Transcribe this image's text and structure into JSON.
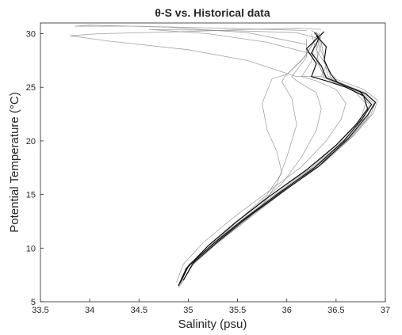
{
  "chart_data": {
    "type": "line",
    "title": "θ-S vs. Historical data",
    "xlabel": "Salinity (psu)",
    "ylabel": "Potential Temperature (°C)",
    "xlim": [
      33.5,
      37
    ],
    "ylim": [
      5,
      31
    ],
    "x_ticks": [
      "33.5",
      "34",
      "34.5",
      "35",
      "35.5",
      "36",
      "36.5",
      "37"
    ],
    "y_ticks": [
      "5",
      "10",
      "15",
      "20",
      "25",
      "30"
    ],
    "grid": false,
    "legend": "none",
    "colors": {
      "historical": "#8c8c8c",
      "current": "#111111",
      "axis": "#262626"
    },
    "series": [
      {
        "group": "historical",
        "points": [
          [
            34.9,
            6.3
          ],
          [
            34.98,
            8.0
          ],
          [
            35.2,
            10.2
          ],
          [
            35.5,
            12.5
          ],
          [
            35.85,
            15.0
          ],
          [
            36.25,
            17.5
          ],
          [
            36.55,
            20.0
          ],
          [
            36.75,
            22.0
          ],
          [
            36.8,
            23.5
          ],
          [
            36.7,
            24.5
          ],
          [
            36.55,
            25.3
          ],
          [
            36.4,
            25.8
          ],
          [
            36.3,
            27.5
          ],
          [
            36.35,
            29.0
          ],
          [
            36.3,
            30.2
          ]
        ]
      },
      {
        "group": "historical",
        "points": [
          [
            34.93,
            6.6
          ],
          [
            35.02,
            8.2
          ],
          [
            35.25,
            10.3
          ],
          [
            35.55,
            12.6
          ],
          [
            35.9,
            15.0
          ],
          [
            36.3,
            17.6
          ],
          [
            36.62,
            20.1
          ],
          [
            36.82,
            22.2
          ],
          [
            36.88,
            23.5
          ],
          [
            36.75,
            24.6
          ],
          [
            36.55,
            25.4
          ],
          [
            36.35,
            26.0
          ],
          [
            36.4,
            27.0
          ],
          [
            36.3,
            28.5
          ],
          [
            36.35,
            29.8
          ],
          [
            36.25,
            30.3
          ]
        ]
      },
      {
        "group": "historical",
        "points": [
          [
            34.88,
            6.8
          ],
          [
            34.95,
            8.5
          ],
          [
            35.15,
            10.5
          ],
          [
            35.45,
            12.8
          ],
          [
            35.8,
            15.2
          ],
          [
            36.15,
            17.6
          ],
          [
            36.4,
            20.0
          ],
          [
            36.55,
            22.0
          ],
          [
            36.6,
            23.5
          ],
          [
            36.5,
            24.8
          ],
          [
            36.3,
            25.6
          ],
          [
            36.15,
            26.0
          ],
          [
            36.25,
            27.4
          ],
          [
            36.28,
            29.0
          ],
          [
            36.25,
            30.0
          ]
        ]
      },
      {
        "group": "historical",
        "points": [
          [
            34.9,
            6.5
          ],
          [
            34.99,
            8.1
          ],
          [
            35.22,
            10.4
          ],
          [
            35.48,
            12.4
          ],
          [
            35.7,
            14.0
          ],
          [
            35.95,
            16.0
          ],
          [
            36.15,
            18.5
          ],
          [
            36.3,
            21.0
          ],
          [
            36.35,
            23.0
          ],
          [
            36.3,
            24.5
          ],
          [
            36.1,
            25.6
          ],
          [
            36.05,
            26.0
          ],
          [
            36.2,
            27.8
          ],
          [
            36.2,
            29.5
          ]
        ]
      },
      {
        "group": "historical",
        "points": [
          [
            34.92,
            6.9
          ],
          [
            35.0,
            8.4
          ],
          [
            35.28,
            10.6
          ],
          [
            35.6,
            12.8
          ],
          [
            35.92,
            15.2
          ],
          [
            36.35,
            17.8
          ],
          [
            36.65,
            20.3
          ],
          [
            36.85,
            22.4
          ],
          [
            36.9,
            23.6
          ],
          [
            36.8,
            24.5
          ],
          [
            36.6,
            25.2
          ],
          [
            36.45,
            25.8
          ],
          [
            36.4,
            27.2
          ],
          [
            36.33,
            28.8
          ],
          [
            36.3,
            30.0
          ]
        ]
      },
      {
        "group": "historical",
        "points": [
          [
            34.95,
            7.0
          ],
          [
            35.05,
            8.5
          ],
          [
            35.3,
            10.5
          ],
          [
            35.55,
            12.3
          ],
          [
            35.75,
            14.0
          ],
          [
            35.9,
            16.0
          ],
          [
            36.0,
            18.5
          ],
          [
            36.1,
            21.5
          ],
          [
            36.05,
            24.0
          ],
          [
            35.95,
            25.5
          ],
          [
            35.98,
            26.0
          ],
          [
            36.15,
            27.5
          ],
          [
            36.3,
            29.5
          ]
        ]
      },
      {
        "group": "historical",
        "points": [
          [
            34.91,
            6.4
          ],
          [
            35.0,
            8.3
          ],
          [
            35.24,
            10.3
          ],
          [
            35.52,
            12.5
          ],
          [
            35.88,
            15.0
          ],
          [
            36.28,
            17.6
          ],
          [
            36.58,
            20.1
          ],
          [
            36.78,
            22.1
          ],
          [
            36.84,
            23.4
          ],
          [
            36.72,
            24.6
          ],
          [
            36.52,
            25.3
          ],
          [
            36.38,
            25.9
          ],
          [
            36.32,
            27.3
          ],
          [
            36.3,
            28.9
          ],
          [
            36.33,
            30.1
          ]
        ]
      },
      {
        "group": "historical",
        "points": [
          [
            34.94,
            7.2
          ],
          [
            35.02,
            8.6
          ],
          [
            35.32,
            10.7
          ],
          [
            35.65,
            13.0
          ],
          [
            36.0,
            15.5
          ],
          [
            36.38,
            18.0
          ],
          [
            36.68,
            20.5
          ],
          [
            36.88,
            22.6
          ],
          [
            36.92,
            23.8
          ],
          [
            36.78,
            24.8
          ],
          [
            36.58,
            25.5
          ],
          [
            36.42,
            26.0
          ],
          [
            36.38,
            27.6
          ],
          [
            36.35,
            29.2
          ]
        ]
      },
      {
        "group": "historical",
        "points": [
          [
            35.2,
            10.0
          ],
          [
            35.5,
            12.5
          ],
          [
            35.8,
            15.0
          ],
          [
            35.95,
            17.0
          ],
          [
            35.9,
            19.0
          ],
          [
            35.8,
            21.0
          ],
          [
            35.75,
            23.5
          ],
          [
            35.85,
            25.8
          ],
          [
            36.0,
            26.2
          ],
          [
            36.2,
            28.0
          ],
          [
            36.3,
            29.8
          ]
        ]
      },
      {
        "group": "historical",
        "points": [
          [
            36.35,
            26.0
          ],
          [
            36.1,
            26.0
          ],
          [
            35.6,
            27.5
          ],
          [
            35.0,
            28.5
          ],
          [
            34.2,
            29.3
          ],
          [
            33.8,
            29.8
          ],
          [
            34.1,
            30.0
          ],
          [
            35.0,
            30.2
          ],
          [
            35.6,
            30.4
          ],
          [
            36.1,
            30.5
          ],
          [
            36.35,
            30.4
          ]
        ]
      },
      {
        "group": "historical",
        "points": [
          [
            36.2,
            29.0
          ],
          [
            35.6,
            30.1
          ],
          [
            34.8,
            30.6
          ],
          [
            34.0,
            30.8
          ],
          [
            33.85,
            30.7
          ],
          [
            34.5,
            30.7
          ],
          [
            35.4,
            30.5
          ],
          [
            36.2,
            30.3
          ]
        ]
      },
      {
        "group": "historical",
        "points": [
          [
            36.3,
            28.0
          ],
          [
            35.8,
            29.2
          ],
          [
            35.2,
            30.0
          ],
          [
            34.6,
            30.4
          ],
          [
            35.4,
            30.3
          ],
          [
            36.1,
            30.1
          ],
          [
            36.3,
            29.6
          ]
        ]
      },
      {
        "group": "current",
        "points": [
          [
            34.9,
            6.5
          ],
          [
            34.98,
            8.1
          ],
          [
            35.2,
            10.2
          ],
          [
            35.48,
            12.4
          ],
          [
            35.82,
            14.8
          ],
          [
            36.2,
            17.3
          ],
          [
            36.5,
            19.6
          ],
          [
            36.7,
            21.5
          ],
          [
            36.82,
            23.0
          ],
          [
            36.78,
            24.2
          ],
          [
            36.6,
            25.0
          ],
          [
            36.4,
            25.6
          ],
          [
            36.25,
            26.0
          ],
          [
            36.3,
            27.2
          ],
          [
            36.2,
            28.6
          ],
          [
            36.3,
            29.5
          ],
          [
            36.38,
            30.2
          ]
        ]
      },
      {
        "group": "current",
        "points": [
          [
            34.92,
            6.8
          ],
          [
            35.0,
            8.3
          ],
          [
            35.25,
            10.4
          ],
          [
            35.55,
            12.6
          ],
          [
            35.9,
            15.0
          ],
          [
            36.28,
            17.5
          ],
          [
            36.58,
            20.0
          ],
          [
            36.76,
            22.0
          ],
          [
            36.86,
            23.4
          ],
          [
            36.74,
            24.6
          ],
          [
            36.52,
            25.4
          ],
          [
            36.45,
            26.2
          ],
          [
            36.38,
            27.5
          ],
          [
            36.4,
            28.8
          ],
          [
            36.3,
            29.8
          ]
        ]
      },
      {
        "group": "current",
        "points": [
          [
            34.95,
            7.0
          ],
          [
            35.05,
            8.6
          ],
          [
            35.3,
            10.6
          ],
          [
            35.58,
            12.7
          ],
          [
            35.95,
            15.2
          ],
          [
            36.32,
            17.6
          ],
          [
            36.62,
            20.2
          ],
          [
            36.82,
            22.4
          ],
          [
            36.9,
            23.6
          ],
          [
            36.8,
            24.4
          ],
          [
            36.58,
            25.2
          ],
          [
            36.4,
            25.9
          ],
          [
            36.35,
            27.0
          ],
          [
            36.25,
            28.2
          ],
          [
            36.33,
            29.6
          ],
          [
            36.28,
            30.1
          ]
        ]
      }
    ]
  }
}
